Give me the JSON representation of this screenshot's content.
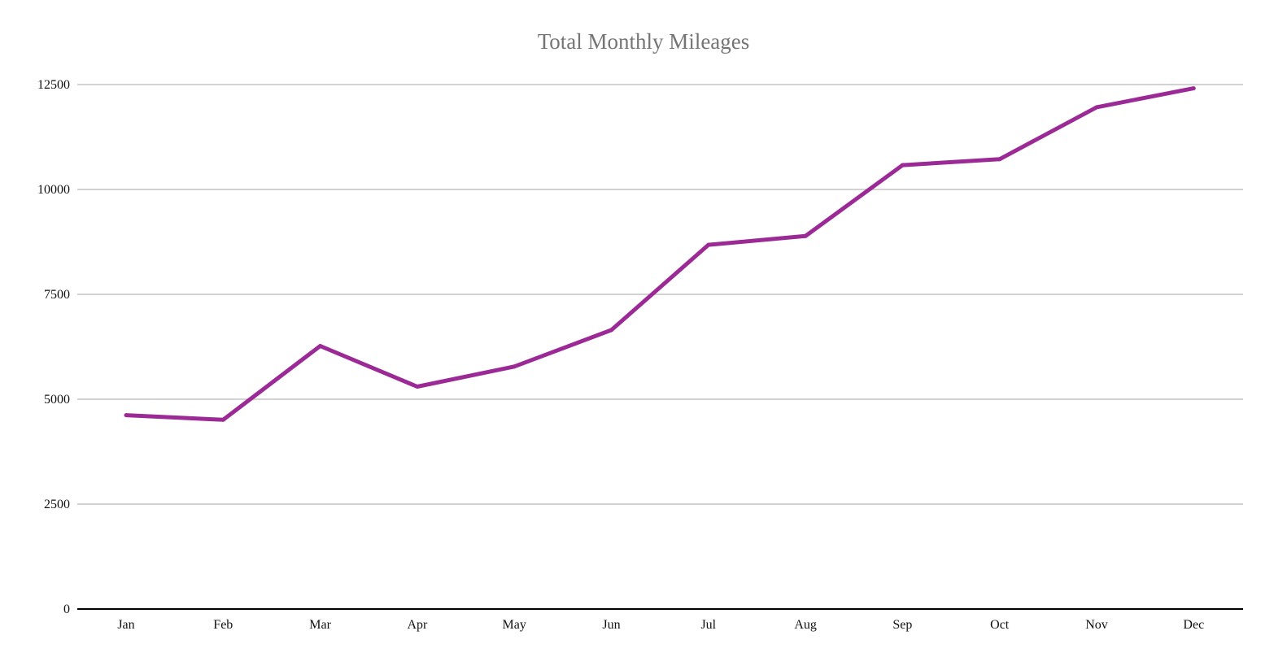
{
  "chart_data": {
    "type": "line",
    "title": "Total Monthly Mileages",
    "xlabel": "",
    "ylabel": "",
    "categories": [
      "Jan",
      "Feb",
      "Mar",
      "Apr",
      "May",
      "Jun",
      "Jul",
      "Aug",
      "Sep",
      "Oct",
      "Nov",
      "Dec"
    ],
    "series": [
      {
        "values": [
          4620,
          4510,
          6270,
          5300,
          5780,
          6650,
          8680,
          8890,
          10580,
          10720,
          11960,
          12410
        ]
      }
    ],
    "ylim": [
      0,
      12500
    ],
    "yticks": [
      "0",
      "2500",
      "5000",
      "7500",
      "10000",
      "12500"
    ],
    "grid": true,
    "legend": "none",
    "colors": {
      "line": "#9c2a96",
      "grid": "#c4c4c4",
      "axis": "#000000",
      "title": "#757575"
    }
  }
}
